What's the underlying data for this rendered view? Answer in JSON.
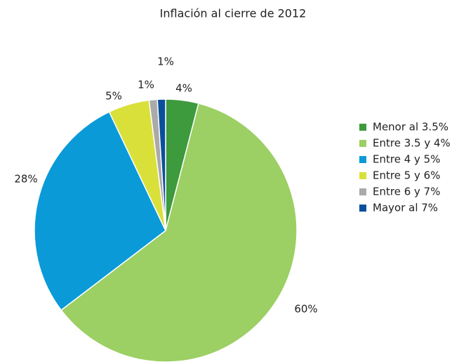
{
  "chart_data": {
    "type": "pie",
    "title": "Inflación al cierre de 2012",
    "categories": [
      "Menor al 3.5%",
      "Entre 3.5 y 4%",
      "Entre 4 y 5%",
      "Entre 5 y 6%",
      "Entre 6 y 7%",
      "Mayor al 7%"
    ],
    "values": [
      4,
      60,
      28,
      5,
      1,
      1
    ],
    "value_labels": [
      "4%",
      "60%",
      "28%",
      "5%",
      "1%",
      "1%"
    ],
    "colors": [
      "#3d9a3d",
      "#9ccf64",
      "#0a9ad8",
      "#d9e03a",
      "#aaaaaa",
      "#0a4f9a"
    ],
    "legend": "right"
  }
}
